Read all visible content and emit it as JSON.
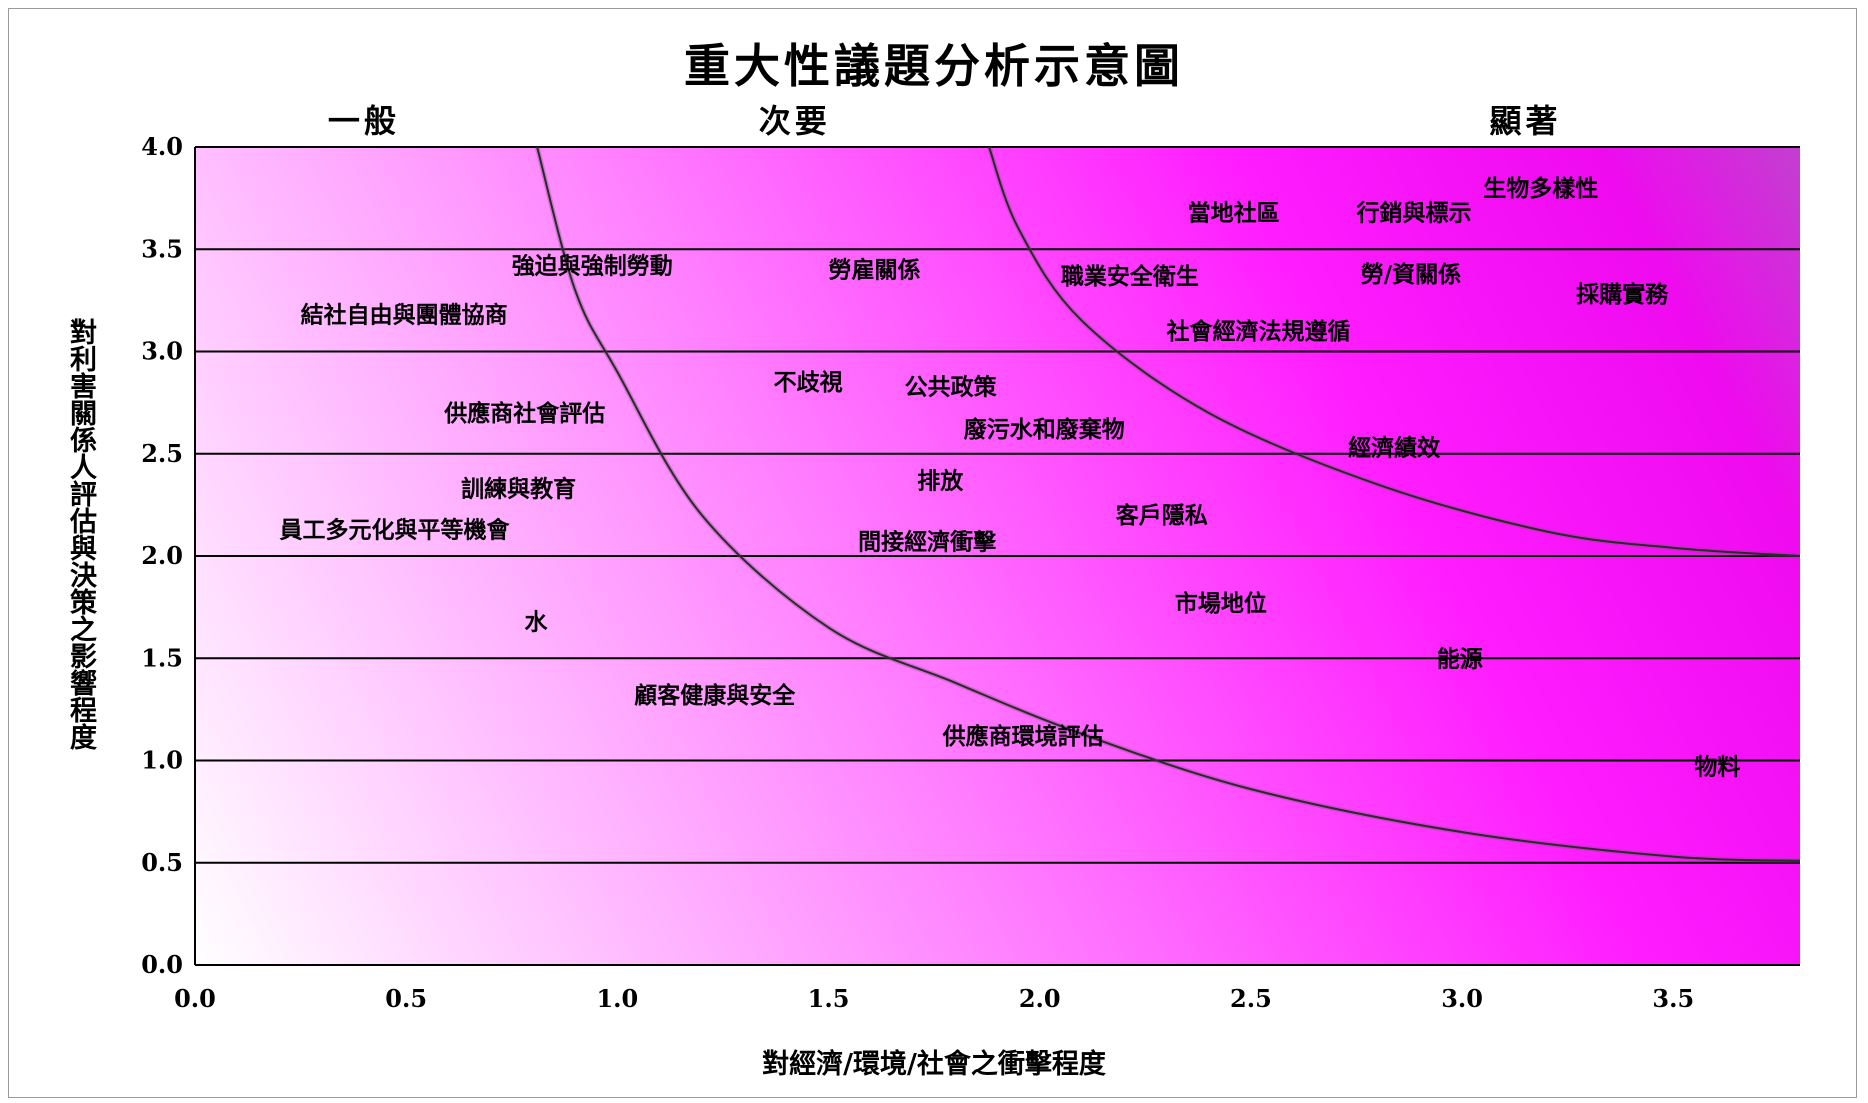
{
  "chart_data": {
    "type": "scatter",
    "title": "重大性議題分析示意圖",
    "xlabel": "對經濟/環境/社會之衝擊程度",
    "ylabel": "對利害關係人評估與決策之影響程度",
    "xlim": [
      0,
      3.8
    ],
    "ylim": [
      0,
      4.0
    ],
    "x_ticks": [
      "0.0",
      "0.5",
      "1.0",
      "1.5",
      "2.0",
      "2.5",
      "3.0",
      "3.5"
    ],
    "y_ticks": [
      "0.0",
      "0.5",
      "1.0",
      "1.5",
      "2.0",
      "2.5",
      "3.0",
      "3.5",
      "4.0"
    ],
    "grid": "horizontal",
    "zones": [
      {
        "label": "一般",
        "x": 0.4
      },
      {
        "label": "次要",
        "x": 1.42
      },
      {
        "label": "顯著",
        "x": 3.15
      }
    ],
    "thresholds": [
      {
        "name": "low",
        "points": [
          [
            0.81,
            4.0
          ],
          [
            0.9,
            3.3
          ],
          [
            1.0,
            2.9
          ],
          [
            1.2,
            2.2
          ],
          [
            1.5,
            1.65
          ],
          [
            1.8,
            1.38
          ],
          [
            2.1,
            1.13
          ],
          [
            2.5,
            0.86
          ],
          [
            3.0,
            0.65
          ],
          [
            3.5,
            0.53
          ],
          [
            3.8,
            0.51
          ]
        ]
      },
      {
        "name": "high",
        "points": [
          [
            1.88,
            4.0
          ],
          [
            1.95,
            3.6
          ],
          [
            2.1,
            3.15
          ],
          [
            2.4,
            2.7
          ],
          [
            2.8,
            2.35
          ],
          [
            3.2,
            2.12
          ],
          [
            3.5,
            2.04
          ],
          [
            3.8,
            2.0
          ]
        ]
      }
    ],
    "gradient": {
      "light": "#ffffff",
      "mid": "#ff00ff",
      "dark": "#c23fcf"
    },
    "points": [
      {
        "label": "生物多樣性",
        "x": 3.05,
        "y": 3.8
      },
      {
        "label": "當地社區",
        "x": 2.35,
        "y": 3.68
      },
      {
        "label": "行銷與標示",
        "x": 2.75,
        "y": 3.68
      },
      {
        "label": "強迫與強制勞動",
        "x": 0.75,
        "y": 3.42
      },
      {
        "label": "勞雇關係",
        "x": 1.5,
        "y": 3.4
      },
      {
        "label": "職業安全衛生",
        "x": 2.05,
        "y": 3.37
      },
      {
        "label": "勞/資關係",
        "x": 2.76,
        "y": 3.38
      },
      {
        "label": "採購實務",
        "x": 3.27,
        "y": 3.28
      },
      {
        "label": "結社自由與團體協商",
        "x": 0.25,
        "y": 3.18
      },
      {
        "label": "社會經濟法規遵循",
        "x": 2.3,
        "y": 3.1
      },
      {
        "label": "不歧視",
        "x": 1.37,
        "y": 2.85
      },
      {
        "label": "公共政策",
        "x": 1.68,
        "y": 2.83
      },
      {
        "label": "供應商社會評估",
        "x": 0.59,
        "y": 2.7
      },
      {
        "label": "廢污水和廢棄物",
        "x": 1.82,
        "y": 2.62
      },
      {
        "label": "經濟績效",
        "x": 2.73,
        "y": 2.53
      },
      {
        "label": "排放",
        "x": 1.71,
        "y": 2.37
      },
      {
        "label": "訓練與教育",
        "x": 0.63,
        "y": 2.33
      },
      {
        "label": "客戶隱私",
        "x": 2.18,
        "y": 2.2
      },
      {
        "label": "員工多元化與平等機會",
        "x": 0.2,
        "y": 2.13
      },
      {
        "label": "間接經濟衝擊",
        "x": 1.57,
        "y": 2.07
      },
      {
        "label": "市場地位",
        "x": 2.32,
        "y": 1.77
      },
      {
        "label": "水",
        "x": 0.78,
        "y": 1.68
      },
      {
        "label": "能源",
        "x": 2.94,
        "y": 1.5
      },
      {
        "label": "顧客健康與安全",
        "x": 1.04,
        "y": 1.32
      },
      {
        "label": "供應商環境評估",
        "x": 1.77,
        "y": 1.12
      },
      {
        "label": "物料",
        "x": 3.55,
        "y": 0.97
      }
    ]
  }
}
